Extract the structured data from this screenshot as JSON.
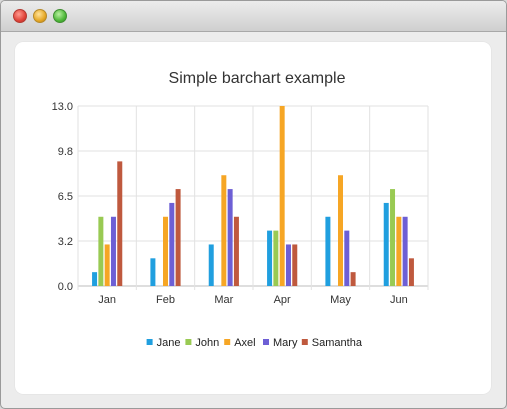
{
  "window": {
    "controls": [
      "close",
      "minimize",
      "zoom"
    ]
  },
  "chart_data": {
    "type": "bar",
    "title": "Simple barchart example",
    "xlabel": "",
    "ylabel": "",
    "categories": [
      "Jan",
      "Feb",
      "Mar",
      "Apr",
      "May",
      "Jun"
    ],
    "ylim": [
      0,
      13
    ],
    "yticks": [
      "0.0",
      "3.2",
      "6.5",
      "9.8",
      "13.0"
    ],
    "grid": true,
    "legend_position": "bottom",
    "series": [
      {
        "name": "Jane",
        "color": "#209fdf",
        "values": [
          1,
          2,
          3,
          4,
          5,
          6
        ]
      },
      {
        "name": "John",
        "color": "#99ca53",
        "values": [
          5,
          0,
          0,
          4,
          0,
          7
        ]
      },
      {
        "name": "Axel",
        "color": "#f6a625",
        "values": [
          3,
          5,
          8,
          13,
          8,
          5
        ]
      },
      {
        "name": "Mary",
        "color": "#6d5fd5",
        "values": [
          5,
          6,
          7,
          3,
          4,
          5
        ]
      },
      {
        "name": "Samantha",
        "color": "#bf593e",
        "values": [
          9,
          7,
          5,
          3,
          1,
          2
        ]
      }
    ]
  }
}
